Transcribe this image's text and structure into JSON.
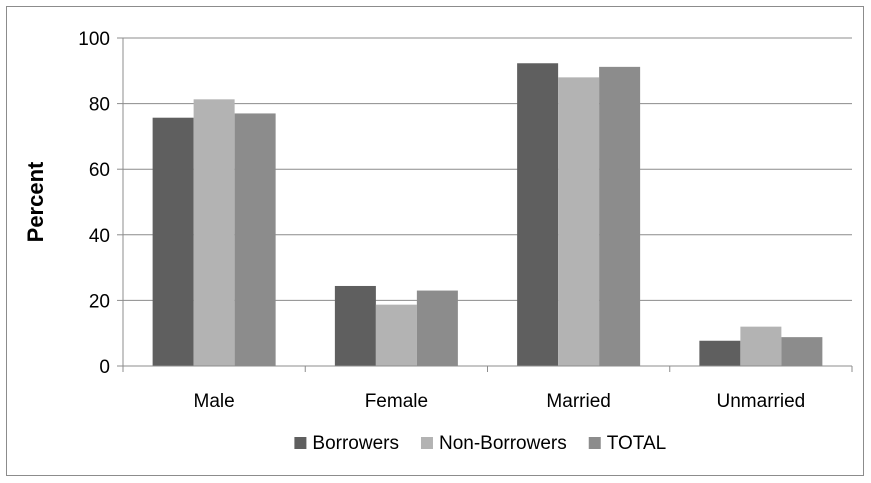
{
  "chart_data": {
    "type": "bar",
    "title": "",
    "xlabel": "",
    "ylabel": "Percent",
    "categories": [
      "Male",
      "Female",
      "Married",
      "Unmarried"
    ],
    "series": [
      {
        "name": "Borrowers",
        "values": [
          75.7,
          24.4,
          92.3,
          7.7
        ]
      },
      {
        "name": "Non-Borrowers",
        "values": [
          81.3,
          18.7,
          88.0,
          12.0
        ]
      },
      {
        "name": "TOTAL",
        "values": [
          77.0,
          23.0,
          91.2,
          8.8
        ]
      }
    ],
    "ylim": [
      0,
      100
    ],
    "yticks": [
      "0",
      "20",
      "40",
      "60",
      "80",
      "100"
    ],
    "grid": true,
    "legend_position": "bottom",
    "colors": [
      "#5f5f5f",
      "#b3b3b3",
      "#8c8c8c"
    ],
    "grid_color": "#8c8c8c"
  }
}
